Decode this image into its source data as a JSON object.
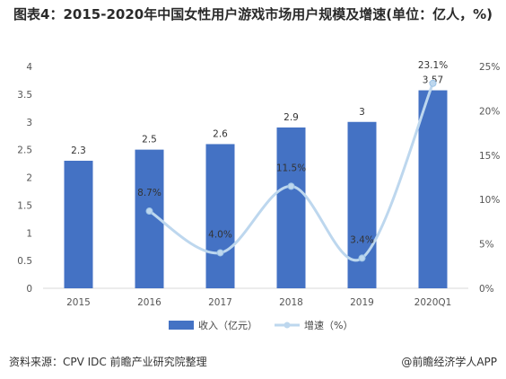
{
  "title": "图表4：2015-2020年中国女性用户游戏市场用户规模及增速(单位：亿人，%)",
  "source": "资料来源：CPV IDC 前瞻产业研究院整理",
  "brand": "@前瞻经济学人APP",
  "colors": {
    "bar": "#4472C4",
    "line": "#BDD7EE",
    "axis": "#d9d9d9"
  },
  "chart_data": {
    "type": "bar+line",
    "categories": [
      "2015",
      "2016",
      "2017",
      "2018",
      "2019",
      "2020Q1"
    ],
    "series": [
      {
        "name": "收入（亿元）",
        "type": "bar",
        "axis": "left",
        "values": [
          2.3,
          2.5,
          2.6,
          2.9,
          3,
          3.57
        ],
        "labels": [
          "2.3",
          "2.5",
          "2.6",
          "2.9",
          "3",
          "3.57"
        ]
      },
      {
        "name": "增速（%）",
        "type": "line",
        "axis": "right",
        "values": [
          null,
          8.7,
          4.0,
          11.5,
          3.4,
          23.1
        ],
        "labels": [
          "",
          "8.7%",
          "4.0%",
          "11.5%",
          "3.4%",
          "23.1%"
        ]
      }
    ],
    "y_left": {
      "min": 0,
      "max": 4,
      "ticks": [
        "0",
        "0.5",
        "1",
        "1.5",
        "2",
        "2.5",
        "3",
        "3.5",
        "4"
      ]
    },
    "y_right": {
      "min": 0,
      "max": 25,
      "ticks": [
        "0%",
        "5%",
        "10%",
        "15%",
        "20%",
        "25%"
      ]
    },
    "legend_position": "bottom",
    "grid": false
  }
}
